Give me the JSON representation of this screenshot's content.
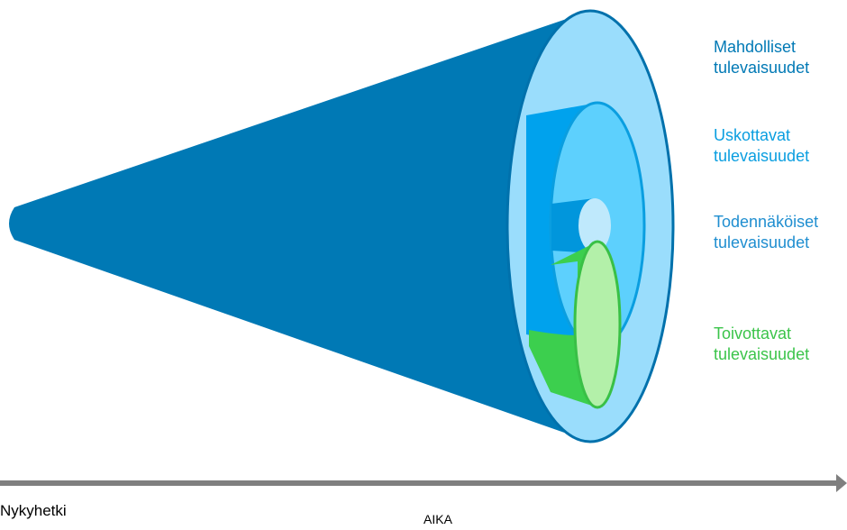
{
  "futures": {
    "possible": {
      "line1": "Mahdolliset",
      "line2": "tulevaisuudet",
      "color": "#0079b5"
    },
    "plausible": {
      "line1": "Uskottavat",
      "line2": "tulevaisuudet",
      "color": "#0a9ee0"
    },
    "probable": {
      "line1": "Todennäköiset",
      "line2": "tulevaisuudet",
      "color": "#1f8ed0"
    },
    "preferable": {
      "line1": "Toivottavat",
      "line2": "tulevaisuudet",
      "color": "#3bc44a"
    }
  },
  "axis": {
    "start_label": "Nykyhetki",
    "axis_label": "AIKA",
    "color": "#7f7f7f"
  },
  "palette": {
    "cone_outer": "#0079b5",
    "cone_outer_face": "#9addfc",
    "cone_outer_rim": "#0071ac",
    "cone_mid": "#00a2ed",
    "cone_mid_face": "#5dd0fd",
    "cone_inner": "#0196dc",
    "cone_inner_face": "#bfe9fc",
    "preferable_body": "#3ccf4e",
    "preferable_face": "#b3f0a9",
    "preferable_rim": "#39c046"
  }
}
